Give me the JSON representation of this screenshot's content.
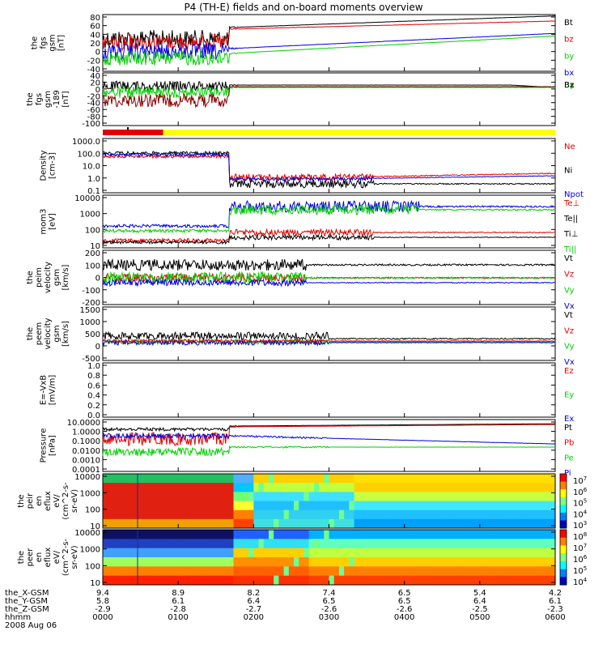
{
  "title": "P4 (TH-E) fields and on-board moments overview",
  "colors": {
    "black": "#000000",
    "red": "#e00000",
    "green": "#00d000",
    "blue": "#0000e0",
    "yellow": "#ffff00",
    "darkred": "#8b0000"
  },
  "chart_data": [
    {
      "id": "fgs",
      "type": "line",
      "ylabel": [
        "the",
        "fgs",
        "gsm",
        "[nT]"
      ],
      "yticks": [
        80,
        60,
        40,
        20,
        0,
        -20,
        -40
      ],
      "ylim": [
        -40,
        80
      ],
      "legend": [
        {
          "name": "Bt",
          "color": "#000000"
        },
        {
          "name": "bz",
          "color": "#e00000"
        },
        {
          "name": "by",
          "color": "#00d000"
        },
        {
          "name": "bx",
          "color": "#0000e0"
        }
      ]
    },
    {
      "id": "fgs189",
      "type": "line",
      "ylabel": [
        "the",
        "fgs",
        "gsm",
        "-189",
        "[nT]"
      ],
      "yticks": [
        40,
        20,
        0,
        -20,
        -40,
        -60,
        -80,
        -100
      ],
      "ylim": [
        -110,
        40
      ],
      "legend": [
        {
          "name": "Bx",
          "color": "#8b0000"
        },
        {
          "name": "By",
          "color": "#00d000"
        },
        {
          "name": "Bz",
          "color": "#000000"
        }
      ]
    },
    {
      "id": "mode",
      "type": "bar",
      "segments": [
        {
          "from": 0.0,
          "to": 0.8,
          "color": "#e00000"
        },
        {
          "from": 0.8,
          "to": 6.0,
          "color": "#ffff00"
        }
      ]
    },
    {
      "id": "density",
      "type": "line",
      "ylabel": [
        "Density",
        "[cm-3]"
      ],
      "yticks": [
        "1000.0",
        "100.0",
        "10.0",
        "1.0",
        "0.1"
      ],
      "log": true,
      "ylim": [
        0.08,
        2000
      ],
      "legend": [
        {
          "name": "Ne",
          "color": "#e00000"
        },
        {
          "name": "Ni",
          "color": "#000000"
        },
        {
          "name": "Npot",
          "color": "#0000e0"
        }
      ]
    },
    {
      "id": "temp",
      "type": "line",
      "ylabel": [
        "mom3",
        "[eV]"
      ],
      "yticks": [
        "10000",
        "1000",
        "100",
        "10"
      ],
      "log": true,
      "ylim": [
        8,
        12000
      ],
      "legend": [
        {
          "name": "Te⊥",
          "color": "#e00000"
        },
        {
          "name": "Te||",
          "color": "#000000"
        },
        {
          "name": "Ti⊥",
          "color": "#000000"
        },
        {
          "name": "Ti||",
          "color": "#00d000"
        }
      ]
    },
    {
      "id": "peim",
      "type": "line",
      "ylabel": [
        "the",
        "peim",
        "velocity",
        "gsm",
        "[km/s]"
      ],
      "yticks": [
        200,
        100,
        0,
        -100,
        -200
      ],
      "ylim": [
        -200,
        220
      ],
      "legend": [
        {
          "name": "Vt",
          "color": "#000000"
        },
        {
          "name": "Vz",
          "color": "#e00000"
        },
        {
          "name": "Vy",
          "color": "#00d000"
        },
        {
          "name": "Vx",
          "color": "#0000e0"
        }
      ]
    },
    {
      "id": "peem",
      "type": "line",
      "ylabel": [
        "the",
        "peem",
        "velocity",
        "gsm",
        "[km/s]"
      ],
      "yticks": [
        1500,
        1000,
        500,
        0,
        -500
      ],
      "ylim": [
        -600,
        1600
      ],
      "legend": [
        {
          "name": "Vt",
          "color": "#000000"
        },
        {
          "name": "Vz",
          "color": "#e00000"
        },
        {
          "name": "Vy",
          "color": "#00d000"
        },
        {
          "name": "Vx",
          "color": "#0000e0"
        }
      ]
    },
    {
      "id": "efield",
      "type": "line",
      "ylabel": [
        "E=-VxB",
        "[mV/m]"
      ],
      "yticks": [
        "1.0",
        "0.8",
        "0.6",
        "0.4",
        "0.2",
        "0.0"
      ],
      "ylim": [
        0,
        1
      ],
      "legend": [
        {
          "name": "Ez",
          "color": "#e00000"
        },
        {
          "name": "Ey",
          "color": "#00d000"
        },
        {
          "name": "Ex",
          "color": "#0000e0"
        }
      ]
    },
    {
      "id": "pressure",
      "type": "line",
      "ylabel": [
        "Pressure",
        "[nPa]"
      ],
      "yticks": [
        "10.0000",
        "1.0000",
        "0.1000",
        "0.0100",
        "0.0010",
        "0.0001"
      ],
      "log": true,
      "ylim": [
        0.0001,
        10
      ],
      "legend": [
        {
          "name": "Pt",
          "color": "#000000"
        },
        {
          "name": "Pb",
          "color": "#e00000"
        },
        {
          "name": "Pe",
          "color": "#00d000"
        },
        {
          "name": "Pi",
          "color": "#0000e0"
        }
      ]
    },
    {
      "id": "peir",
      "type": "heatmap",
      "ylabel": [
        "the",
        "peir",
        "en",
        "eflux",
        "eV/",
        "(cm^2-s-",
        "sr-eV)"
      ],
      "yticks": [
        "10000",
        "1000",
        "100",
        "10"
      ],
      "colorbar": [
        "10^7",
        "10^6",
        "10^5",
        "10^4",
        "10^3"
      ]
    },
    {
      "id": "peer",
      "type": "heatmap",
      "ylabel": [
        "the",
        "peer",
        "en",
        "eflux",
        "eV/",
        "(cm^2-s-",
        "sr-eV)"
      ],
      "yticks": [
        "10000",
        "1000",
        "100",
        "10"
      ],
      "colorbar": [
        "10^8",
        "10^7",
        "10^6",
        "10^5",
        "10^4"
      ]
    }
  ],
  "x_axis": {
    "rows": [
      {
        "label": "the_X-GSM",
        "values": [
          "9.4",
          "8.9",
          "8.2",
          "7.4",
          "6.5",
          "5.4",
          "4.2"
        ]
      },
      {
        "label": "the_Y-GSM",
        "values": [
          "5.8",
          "6.1",
          "6.4",
          "6.5",
          "6.5",
          "6.4",
          "6.1"
        ]
      },
      {
        "label": "the_Z-GSM",
        "values": [
          "-2.9",
          "-2.8",
          "-2.7",
          "-2.6",
          "-2.6",
          "-2.5",
          "-2.3"
        ]
      },
      {
        "label": "hhmm",
        "values": [
          "0000",
          "0100",
          "0200",
          "0300",
          "0400",
          "0500",
          "0600"
        ]
      }
    ],
    "date": "2008 Aug 06"
  }
}
